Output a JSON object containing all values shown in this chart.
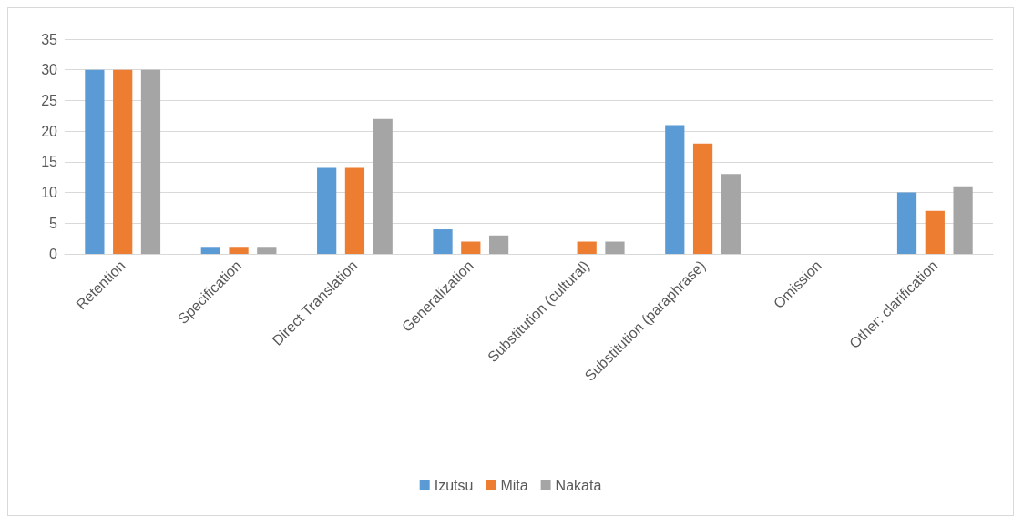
{
  "chart_data": {
    "type": "bar",
    "categories": [
      "Retention",
      "Specification",
      "Direct Translation",
      "Generalization",
      "Substitution (cultural)",
      "Substitution (paraphrase)",
      "Omission",
      "Other: clarification"
    ],
    "series": [
      {
        "name": "Izutsu",
        "color": "#5b9bd5",
        "values": [
          30,
          1,
          14,
          4,
          0,
          21,
          0,
          10
        ]
      },
      {
        "name": "Mita",
        "color": "#ed7d31",
        "values": [
          30,
          1,
          14,
          2,
          2,
          18,
          0,
          7
        ]
      },
      {
        "name": "Nakata",
        "color": "#a5a5a5",
        "values": [
          30,
          1,
          22,
          3,
          2,
          13,
          0,
          11
        ]
      }
    ],
    "ylim": [
      0,
      35
    ],
    "yticks": [
      0,
      5,
      10,
      15,
      20,
      25,
      30,
      35
    ],
    "grid": "y",
    "legend": "bottom"
  }
}
